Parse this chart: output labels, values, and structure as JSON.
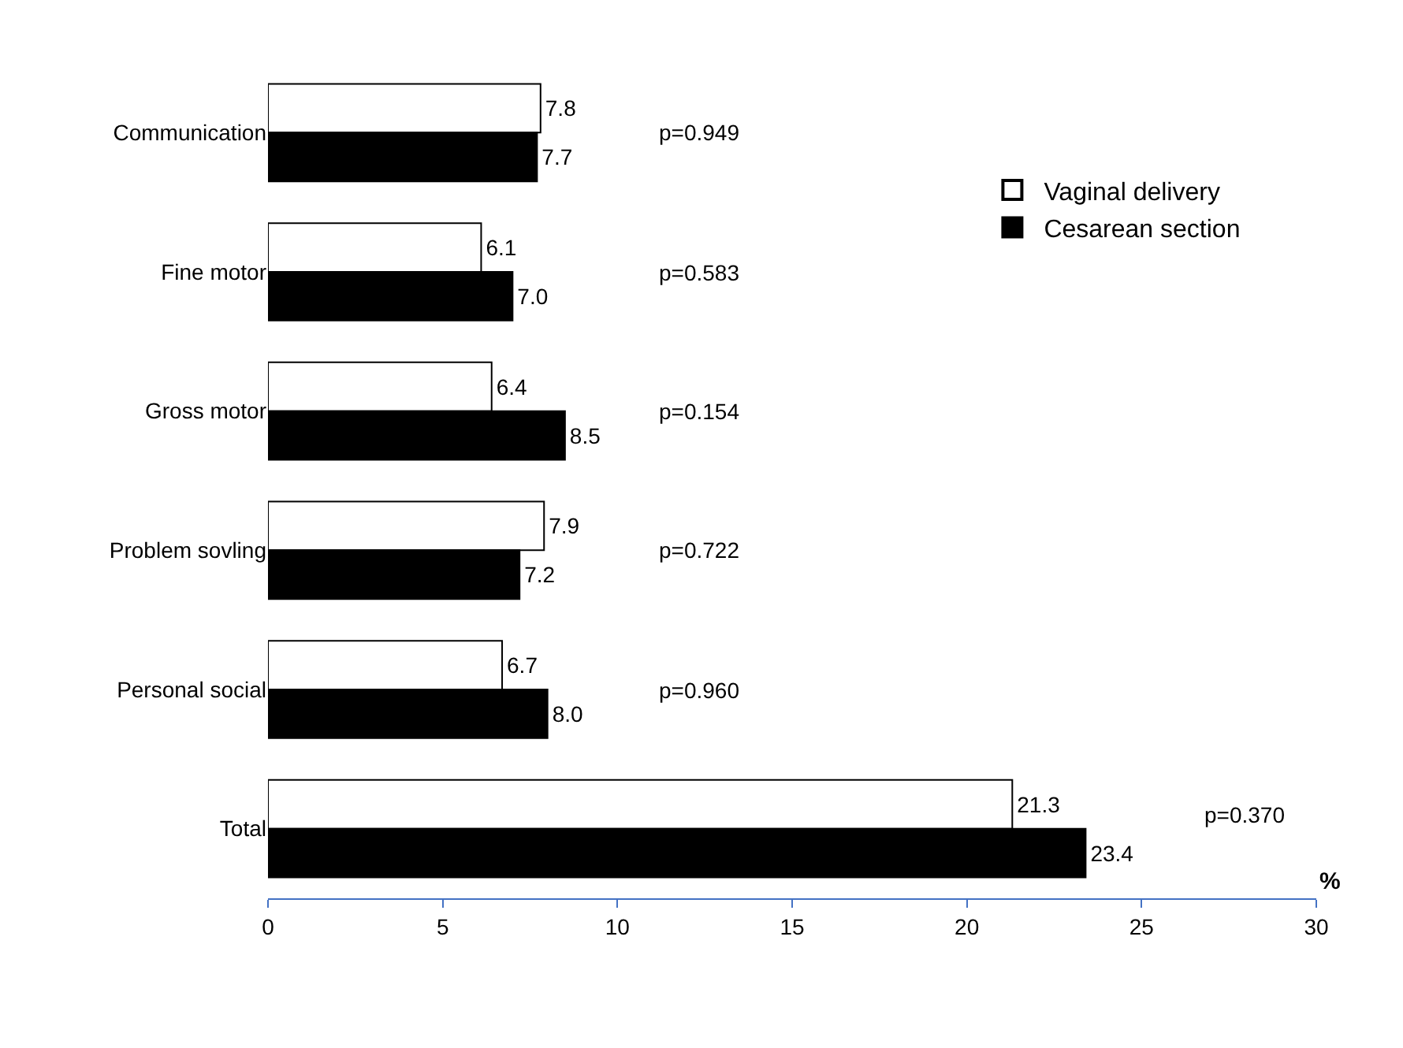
{
  "chart_data": {
    "type": "bar",
    "orientation": "horizontal",
    "xlabel": "%",
    "categories": [
      "Communication",
      "Fine motor",
      "Gross motor",
      "Problem sovling",
      "Personal social",
      "Total"
    ],
    "series": [
      {
        "name": "Vaginal delivery",
        "color": "#ffffff",
        "values": [
          7.8,
          6.1,
          6.4,
          7.9,
          6.7,
          21.3
        ],
        "value_labels": [
          "7.8",
          "6.1",
          "6.4",
          "7.9",
          "6.7",
          "21.3"
        ]
      },
      {
        "name": "Cesarean section",
        "color": "#000000",
        "values": [
          7.7,
          7.0,
          8.5,
          7.2,
          8.0,
          23.4
        ],
        "value_labels": [
          "7.7",
          "7.0",
          "8.5",
          "7.2",
          "8.0",
          "23.4"
        ]
      }
    ],
    "xlim": [
      0,
      30
    ],
    "xticks": [
      0,
      5,
      10,
      15,
      20,
      25,
      30
    ],
    "legend": "top right",
    "annotations": [
      "p=0.949",
      "p=0.583",
      "p=0.154",
      "p=0.722",
      "p=0.960",
      "p=0.370"
    ]
  }
}
